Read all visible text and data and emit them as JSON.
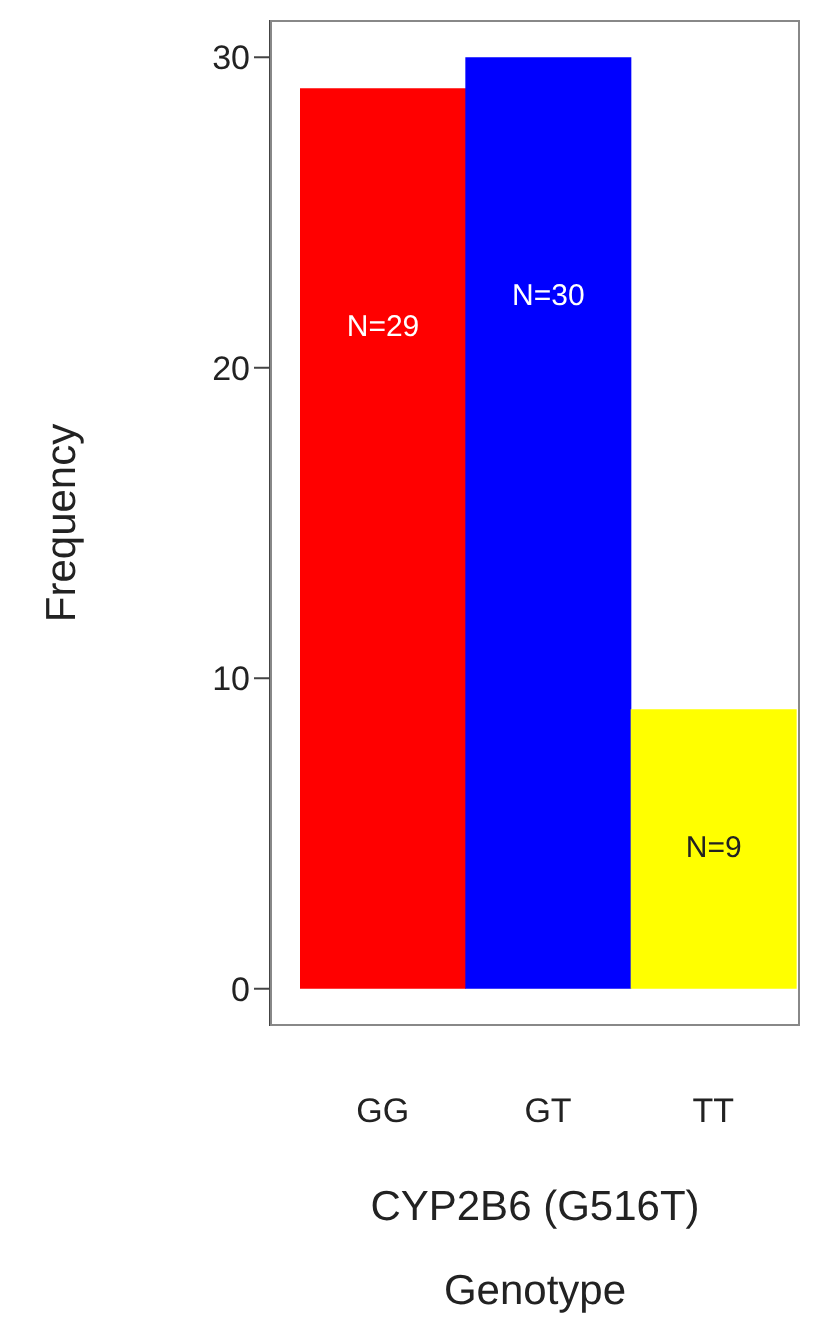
{
  "chart_data": {
    "type": "bar",
    "xlabel": "CYP2B6 (G516T)\nGenotype",
    "ylabel": "Frequency",
    "categories": [
      "GG",
      "GT",
      "TT"
    ],
    "values": [
      29,
      30,
      9
    ],
    "colors": [
      "#ff0000",
      "#0000ff",
      "#ffff00"
    ],
    "value_labels": [
      "N=29",
      "N=30",
      "N=9"
    ],
    "ylim": [
      -1.2,
      31.2
    ],
    "yticks": [
      0,
      10,
      20,
      30
    ],
    "grid": false,
    "legend": false
  }
}
